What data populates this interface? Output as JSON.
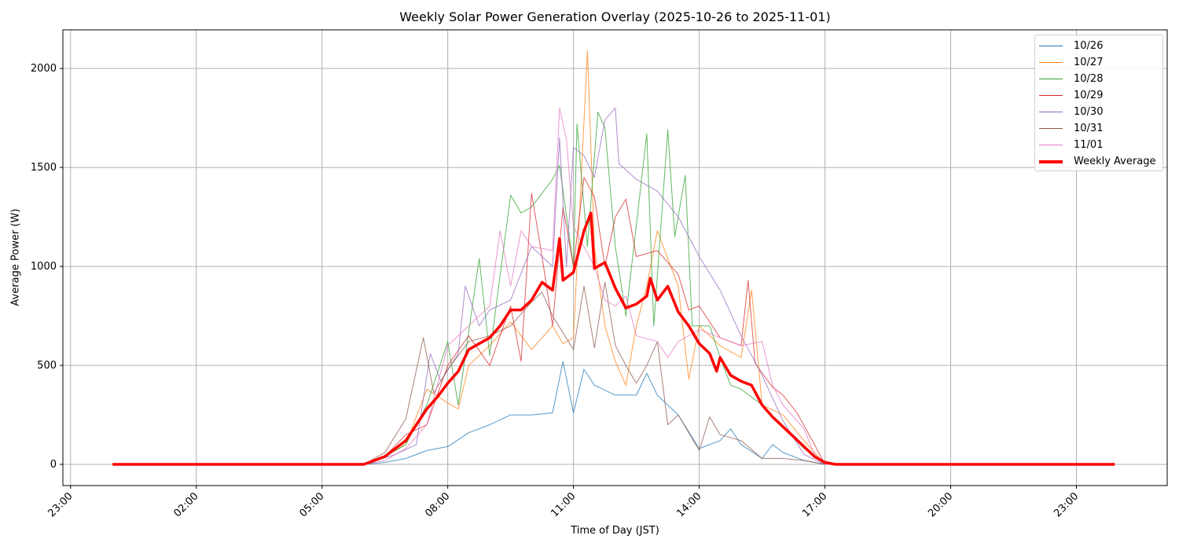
{
  "chart_data": {
    "type": "line",
    "title": "Weekly Solar Power Generation Overlay (2025-10-26 to 2025-11-01)",
    "xlabel": "Time of Day (JST)",
    "ylabel": "Average Power (W)",
    "xlim": [
      "22:49",
      "01:10"
    ],
    "ylim": [
      -107,
      2195
    ],
    "x_ticks": [
      "23:00",
      "02:00",
      "05:00",
      "08:00",
      "11:00",
      "14:00",
      "17:00",
      "20:00",
      "23:00"
    ],
    "y_ticks": [
      0,
      500,
      1000,
      1500,
      2000
    ],
    "grid": true,
    "legend_position": "top-right",
    "series": [
      {
        "name": "10/26",
        "color": "#1f77b4",
        "points": [
          [
            "00:00",
            0
          ],
          [
            "06:00",
            0
          ],
          [
            "06:30",
            10
          ],
          [
            "07:00",
            30
          ],
          [
            "07:30",
            70
          ],
          [
            "08:00",
            90
          ],
          [
            "08:30",
            160
          ],
          [
            "09:00",
            200
          ],
          [
            "09:30",
            250
          ],
          [
            "10:00",
            250
          ],
          [
            "10:30",
            260
          ],
          [
            "10:45",
            520
          ],
          [
            "11:00",
            260
          ],
          [
            "11:15",
            480
          ],
          [
            "11:30",
            400
          ],
          [
            "12:00",
            350
          ],
          [
            "12:30",
            350
          ],
          [
            "12:45",
            460
          ],
          [
            "13:00",
            350
          ],
          [
            "13:30",
            250
          ],
          [
            "14:00",
            80
          ],
          [
            "14:30",
            120
          ],
          [
            "14:45",
            180
          ],
          [
            "15:00",
            100
          ],
          [
            "15:30",
            30
          ],
          [
            "15:45",
            100
          ],
          [
            "16:00",
            60
          ],
          [
            "16:30",
            20
          ],
          [
            "17:00",
            0
          ],
          [
            "23:55",
            0
          ]
        ]
      },
      {
        "name": "10/27",
        "color": "#ff7f0e",
        "points": [
          [
            "00:00",
            0
          ],
          [
            "06:00",
            0
          ],
          [
            "06:30",
            40
          ],
          [
            "07:00",
            100
          ],
          [
            "07:30",
            380
          ],
          [
            "08:00",
            310
          ],
          [
            "08:15",
            280
          ],
          [
            "08:30",
            500
          ],
          [
            "09:00",
            600
          ],
          [
            "09:30",
            720
          ],
          [
            "10:00",
            580
          ],
          [
            "10:30",
            700
          ],
          [
            "10:45",
            610
          ],
          [
            "11:00",
            640
          ],
          [
            "11:20",
            2090
          ],
          [
            "11:30",
            1100
          ],
          [
            "11:45",
            700
          ],
          [
            "12:00",
            520
          ],
          [
            "12:15",
            400
          ],
          [
            "12:30",
            700
          ],
          [
            "12:45",
            900
          ],
          [
            "13:00",
            1180
          ],
          [
            "13:30",
            900
          ],
          [
            "13:45",
            430
          ],
          [
            "14:00",
            700
          ],
          [
            "14:30",
            600
          ],
          [
            "15:00",
            540
          ],
          [
            "15:15",
            880
          ],
          [
            "15:30",
            300
          ],
          [
            "16:00",
            250
          ],
          [
            "16:30",
            120
          ],
          [
            "17:00",
            0
          ],
          [
            "23:55",
            0
          ]
        ]
      },
      {
        "name": "10/28",
        "color": "#2ca02c",
        "points": [
          [
            "00:00",
            0
          ],
          [
            "06:00",
            0
          ],
          [
            "06:30",
            40
          ],
          [
            "07:00",
            100
          ],
          [
            "07:30",
            300
          ],
          [
            "08:00",
            620
          ],
          [
            "08:15",
            300
          ],
          [
            "08:45",
            1040
          ],
          [
            "09:00",
            550
          ],
          [
            "09:30",
            1360
          ],
          [
            "09:45",
            1270
          ],
          [
            "10:00",
            1300
          ],
          [
            "10:30",
            1440
          ],
          [
            "10:40",
            1510
          ],
          [
            "11:00",
            1000
          ],
          [
            "11:05",
            1720
          ],
          [
            "11:20",
            1100
          ],
          [
            "11:35",
            1780
          ],
          [
            "11:45",
            1700
          ],
          [
            "12:00",
            1100
          ],
          [
            "12:15",
            750
          ],
          [
            "12:45",
            1670
          ],
          [
            "12:55",
            700
          ],
          [
            "13:15",
            1690
          ],
          [
            "13:25",
            1150
          ],
          [
            "13:40",
            1460
          ],
          [
            "13:50",
            700
          ],
          [
            "14:15",
            700
          ],
          [
            "14:30",
            540
          ],
          [
            "14:45",
            400
          ],
          [
            "15:00",
            380
          ],
          [
            "15:30",
            300
          ],
          [
            "16:00",
            190
          ],
          [
            "16:30",
            80
          ],
          [
            "17:00",
            0
          ],
          [
            "23:55",
            0
          ]
        ]
      },
      {
        "name": "10/29",
        "color": "#d62728",
        "points": [
          [
            "00:00",
            0
          ],
          [
            "06:00",
            0
          ],
          [
            "06:30",
            40
          ],
          [
            "07:00",
            150
          ],
          [
            "07:30",
            200
          ],
          [
            "08:00",
            500
          ],
          [
            "08:30",
            650
          ],
          [
            "09:00",
            500
          ],
          [
            "09:30",
            800
          ],
          [
            "09:45",
            520
          ],
          [
            "10:00",
            1370
          ],
          [
            "10:15",
            1050
          ],
          [
            "10:30",
            700
          ],
          [
            "10:45",
            1300
          ],
          [
            "11:00",
            1000
          ],
          [
            "11:15",
            1450
          ],
          [
            "11:30",
            1350
          ],
          [
            "11:45",
            1000
          ],
          [
            "12:00",
            1250
          ],
          [
            "12:15",
            1340
          ],
          [
            "12:30",
            1050
          ],
          [
            "13:00",
            1080
          ],
          [
            "13:30",
            960
          ],
          [
            "13:45",
            780
          ],
          [
            "14:00",
            800
          ],
          [
            "14:30",
            640
          ],
          [
            "15:00",
            600
          ],
          [
            "15:10",
            930
          ],
          [
            "15:20",
            510
          ],
          [
            "15:45",
            390
          ],
          [
            "16:00",
            350
          ],
          [
            "16:20",
            260
          ],
          [
            "16:45",
            100
          ],
          [
            "17:00",
            0
          ],
          [
            "23:55",
            0
          ]
        ]
      },
      {
        "name": "10/30",
        "color": "#9467bd",
        "points": [
          [
            "00:00",
            0
          ],
          [
            "06:00",
            0
          ],
          [
            "06:45",
            50
          ],
          [
            "07:15",
            100
          ],
          [
            "07:35",
            560
          ],
          [
            "07:50",
            420
          ],
          [
            "08:15",
            560
          ],
          [
            "08:25",
            900
          ],
          [
            "08:45",
            700
          ],
          [
            "09:00",
            780
          ],
          [
            "09:30",
            830
          ],
          [
            "10:00",
            1100
          ],
          [
            "10:30",
            1000
          ],
          [
            "10:40",
            1650
          ],
          [
            "10:50",
            1000
          ],
          [
            "11:00",
            1600
          ],
          [
            "11:15",
            1560
          ],
          [
            "11:30",
            1450
          ],
          [
            "11:45",
            1740
          ],
          [
            "12:00",
            1800
          ],
          [
            "12:05",
            1520
          ],
          [
            "12:30",
            1440
          ],
          [
            "13:00",
            1380
          ],
          [
            "13:30",
            1250
          ],
          [
            "14:00",
            1050
          ],
          [
            "14:30",
            880
          ],
          [
            "15:00",
            650
          ],
          [
            "15:30",
            450
          ],
          [
            "16:00",
            220
          ],
          [
            "16:30",
            50
          ],
          [
            "17:00",
            0
          ],
          [
            "23:55",
            0
          ]
        ]
      },
      {
        "name": "10/31",
        "color": "#8c564b",
        "points": [
          [
            "00:00",
            0
          ],
          [
            "06:00",
            0
          ],
          [
            "06:30",
            60
          ],
          [
            "07:00",
            230
          ],
          [
            "07:25",
            640
          ],
          [
            "07:40",
            360
          ],
          [
            "08:00",
            480
          ],
          [
            "08:30",
            620
          ],
          [
            "09:00",
            650
          ],
          [
            "09:30",
            700
          ],
          [
            "10:00",
            820
          ],
          [
            "10:15",
            870
          ],
          [
            "10:30",
            750
          ],
          [
            "11:00",
            580
          ],
          [
            "11:15",
            900
          ],
          [
            "11:30",
            590
          ],
          [
            "11:45",
            920
          ],
          [
            "12:00",
            600
          ],
          [
            "12:15",
            500
          ],
          [
            "12:30",
            410
          ],
          [
            "12:45",
            500
          ],
          [
            "13:00",
            620
          ],
          [
            "13:15",
            200
          ],
          [
            "13:30",
            250
          ],
          [
            "14:00",
            70
          ],
          [
            "14:15",
            240
          ],
          [
            "14:30",
            150
          ],
          [
            "15:00",
            120
          ],
          [
            "15:30",
            30
          ],
          [
            "16:00",
            30
          ],
          [
            "16:30",
            20
          ],
          [
            "17:00",
            0
          ],
          [
            "23:55",
            0
          ]
        ]
      },
      {
        "name": "11/01",
        "color": "#e377c2",
        "points": [
          [
            "00:00",
            0
          ],
          [
            "06:00",
            0
          ],
          [
            "06:30",
            20
          ],
          [
            "07:00",
            80
          ],
          [
            "07:30",
            200
          ],
          [
            "08:00",
            600
          ],
          [
            "08:30",
            700
          ],
          [
            "09:00",
            800
          ],
          [
            "09:15",
            1180
          ],
          [
            "09:30",
            900
          ],
          [
            "09:45",
            1180
          ],
          [
            "10:00",
            1100
          ],
          [
            "10:30",
            1080
          ],
          [
            "10:40",
            1800
          ],
          [
            "10:50",
            1640
          ],
          [
            "11:00",
            1200
          ],
          [
            "11:30",
            1000
          ],
          [
            "11:45",
            830
          ],
          [
            "12:00",
            800
          ],
          [
            "12:15",
            850
          ],
          [
            "12:30",
            650
          ],
          [
            "13:00",
            620
          ],
          [
            "13:15",
            540
          ],
          [
            "13:30",
            620
          ],
          [
            "14:00",
            680
          ],
          [
            "14:30",
            640
          ],
          [
            "15:00",
            600
          ],
          [
            "15:30",
            620
          ],
          [
            "15:45",
            400
          ],
          [
            "16:00",
            300
          ],
          [
            "16:30",
            180
          ],
          [
            "16:45",
            50
          ],
          [
            "17:00",
            0
          ],
          [
            "23:55",
            0
          ]
        ]
      },
      {
        "name": "Weekly Average",
        "color": "#ff0000",
        "points": [
          [
            "00:00",
            0
          ],
          [
            "06:00",
            0
          ],
          [
            "06:30",
            40
          ],
          [
            "07:00",
            120
          ],
          [
            "07:15",
            200
          ],
          [
            "07:30",
            280
          ],
          [
            "07:45",
            340
          ],
          [
            "08:00",
            410
          ],
          [
            "08:15",
            470
          ],
          [
            "08:30",
            580
          ],
          [
            "08:45",
            610
          ],
          [
            "09:00",
            640
          ],
          [
            "09:15",
            700
          ],
          [
            "09:30",
            780
          ],
          [
            "09:45",
            780
          ],
          [
            "10:00",
            830
          ],
          [
            "10:15",
            920
          ],
          [
            "10:30",
            880
          ],
          [
            "10:40",
            1140
          ],
          [
            "10:45",
            930
          ],
          [
            "11:00",
            970
          ],
          [
            "11:15",
            1180
          ],
          [
            "11:25",
            1270
          ],
          [
            "11:30",
            990
          ],
          [
            "11:45",
            1020
          ],
          [
            "12:00",
            890
          ],
          [
            "12:15",
            790
          ],
          [
            "12:30",
            810
          ],
          [
            "12:45",
            850
          ],
          [
            "12:50",
            940
          ],
          [
            "13:00",
            830
          ],
          [
            "13:15",
            900
          ],
          [
            "13:30",
            770
          ],
          [
            "13:45",
            700
          ],
          [
            "14:00",
            610
          ],
          [
            "14:15",
            560
          ],
          [
            "14:25",
            470
          ],
          [
            "14:30",
            540
          ],
          [
            "14:45",
            450
          ],
          [
            "15:00",
            420
          ],
          [
            "15:15",
            400
          ],
          [
            "15:30",
            300
          ],
          [
            "15:45",
            240
          ],
          [
            "16:00",
            190
          ],
          [
            "16:15",
            140
          ],
          [
            "16:30",
            90
          ],
          [
            "16:45",
            40
          ],
          [
            "17:00",
            10
          ],
          [
            "17:15",
            0
          ],
          [
            "23:55",
            0
          ]
        ]
      }
    ]
  }
}
